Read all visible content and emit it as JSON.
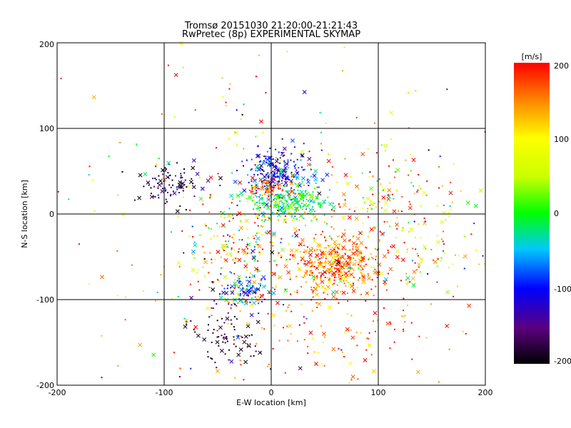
{
  "chart_data": {
    "type": "scatter",
    "title": "Tromsø 20151030 21:20:00-21:21:43",
    "subtitle": "RwPretec (8p) EXPERIMENTAL SKYMAP",
    "xlabel": "E-W location [km]",
    "ylabel": "N-S location [km]",
    "xlim": [
      -200,
      200
    ],
    "ylim": [
      -200,
      200
    ],
    "x_ticks": [
      "-200",
      "-100",
      "0",
      "100",
      "200"
    ],
    "y_ticks": [
      "-200",
      "-100",
      "0",
      "100",
      "200"
    ],
    "grid": true,
    "colorbar": {
      "label": "[m/s]",
      "range": [
        -200,
        200
      ],
      "ticks": [
        "-200",
        "-100",
        "0",
        "100",
        "200"
      ],
      "colormap": "rainbow"
    },
    "markers": [
      "x",
      "dot"
    ],
    "clusters": [
      {
        "name": "north-blue",
        "cx": 5,
        "cy": 50,
        "sx": 15,
        "sy": 12,
        "n": 220,
        "v_mean": -110,
        "v_sd": 40
      },
      {
        "name": "north-west-dark",
        "cx": -95,
        "cy": 35,
        "sx": 14,
        "sy": 12,
        "n": 90,
        "v_mean": -170,
        "v_sd": 40
      },
      {
        "name": "center-cyan",
        "cx": 15,
        "cy": 15,
        "sx": 20,
        "sy": 12,
        "n": 240,
        "v_mean": -15,
        "v_sd": 30
      },
      {
        "name": "center-red",
        "cx": -5,
        "cy": 30,
        "sx": 10,
        "sy": 8,
        "n": 60,
        "v_mean": 175,
        "v_sd": 20
      },
      {
        "name": "south-east-red",
        "cx": 60,
        "cy": -60,
        "sx": 20,
        "sy": 17,
        "n": 420,
        "v_mean": 160,
        "v_sd": 40
      },
      {
        "name": "south-center-blue",
        "cx": -25,
        "cy": -90,
        "sx": 11,
        "sy": 9,
        "n": 90,
        "v_mean": -80,
        "v_sd": 45
      },
      {
        "name": "south-dark",
        "cx": -40,
        "cy": -140,
        "sx": 20,
        "sy": 18,
        "n": 80,
        "v_mean": -185,
        "v_sd": 20
      },
      {
        "name": "central-column",
        "cx": -25,
        "cy": -40,
        "sx": 28,
        "sy": 30,
        "n": 230,
        "v_mean": 90,
        "v_sd": 110
      },
      {
        "name": "east-scatter",
        "cx": 80,
        "cy": 10,
        "sx": 45,
        "sy": 35,
        "n": 140,
        "v_mean": 120,
        "v_sd": 80
      },
      {
        "name": "far-east-scatter",
        "cx": 140,
        "cy": -30,
        "sx": 35,
        "sy": 30,
        "n": 110,
        "v_mean": 110,
        "v_sd": 90
      },
      {
        "name": "south-scatter",
        "cx": 40,
        "cy": -130,
        "sx": 60,
        "sy": 35,
        "n": 130,
        "v_mean": 170,
        "v_sd": 40
      },
      {
        "name": "background",
        "cx": 0,
        "cy": 0,
        "sx": 120,
        "sy": 110,
        "n": 260,
        "v_mean": 90,
        "v_sd": 120
      }
    ]
  }
}
